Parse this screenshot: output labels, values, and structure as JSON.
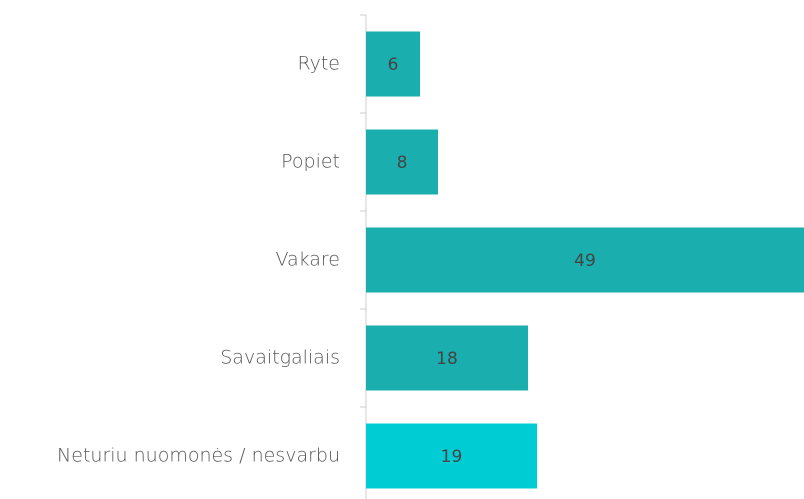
{
  "chart_data": {
    "type": "barh",
    "categories": [
      "Ryte",
      "Popiet",
      "Vakare",
      "Savaitgaliais",
      "Neturiu nuomonės / nesvarbu"
    ],
    "values": [
      6,
      8,
      49,
      18,
      19
    ],
    "colors": [
      "#1aaeae",
      "#1aaeae",
      "#1aaeae",
      "#1aaeae",
      "#00ccd3"
    ]
  }
}
